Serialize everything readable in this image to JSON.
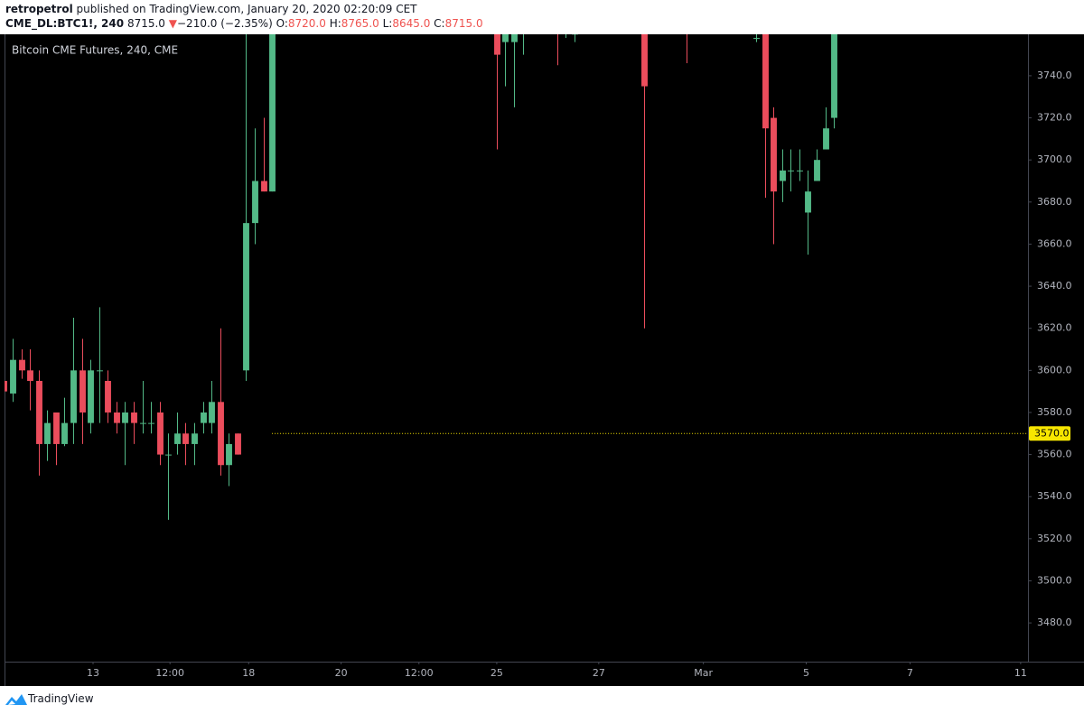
{
  "header": {
    "publisher": "retropetrol",
    "published_text": "published on TradingView.com, January 20, 2020 02:20:09 CET",
    "symbol": "CME_DL:BTC1!, 240",
    "last": "8715.0",
    "arrow": "▼",
    "change": "−210.0 (−2.35%)",
    "open_label": "O:",
    "open": "8720.0",
    "high_label": "H:",
    "high": "8765.0",
    "low_label": "L:",
    "low": "8645.0",
    "close_label": "C:",
    "close": "8715.0"
  },
  "footer": {
    "brand": "TradingView"
  },
  "chart_data": {
    "type": "candlestick",
    "title": "Bitcoin CME Futures, 240, CME",
    "x": [
      -1,
      0,
      1,
      2,
      3,
      4,
      5,
      6,
      7,
      8,
      9,
      10,
      11,
      12,
      13,
      14,
      15,
      16,
      17,
      18,
      19,
      20,
      21,
      22,
      23,
      24,
      25,
      26,
      27,
      28,
      29,
      30,
      56,
      57,
      58,
      59,
      63,
      64,
      65,
      73,
      78,
      86,
      87,
      88,
      89,
      90,
      91,
      92,
      93,
      94,
      95
    ],
    "open": [
      3595,
      3589,
      3605,
      3600,
      3595,
      3565,
      3580,
      3565,
      3575,
      3600,
      3575,
      3600,
      3595,
      3580,
      3575,
      3580,
      3575,
      3575,
      3580,
      3560,
      3565,
      3570,
      3565,
      3575,
      3575,
      3585,
      3555,
      3570,
      3600,
      3670,
      3690,
      3685,
      3770,
      3756,
      3756,
      3765,
      3770,
      3762,
      3760,
      3770,
      3765,
      3758,
      3770,
      3720,
      3690,
      3695,
      3695,
      3675,
      3690,
      3705,
      3720
    ],
    "high": [
      3600,
      3615,
      3610,
      3610,
      3600,
      3581,
      3580,
      3587,
      3625,
      3615,
      3605,
      3630,
      3600,
      3585,
      3585,
      3585,
      3595,
      3585,
      3585,
      3570,
      3580,
      3575,
      3575,
      3585,
      3595,
      3620,
      3570,
      3570,
      3780,
      3715,
      3720,
      3780,
      3780,
      3775,
      3780,
      3775,
      3775,
      3770,
      3770,
      3780,
      3775,
      3765,
      3780,
      3725,
      3705,
      3705,
      3705,
      3695,
      3705,
      3725,
      3780
    ],
    "low": [
      3585,
      3585,
      3596,
      3581,
      3550,
      3557,
      3555,
      3564,
      3565,
      3565,
      3570,
      3575,
      3575,
      3570,
      3555,
      3565,
      3570,
      3570,
      3555,
      3529,
      3560,
      3555,
      3555,
      3570,
      3570,
      3550,
      3545,
      3560,
      3595,
      3660,
      3685,
      3685,
      3705,
      3735,
      3725,
      3750,
      3745,
      3758,
      3756,
      3620,
      3746,
      3756,
      3682,
      3660,
      3680,
      3685,
      3690,
      3655,
      3690,
      3705,
      3715
    ],
    "close": [
      3590,
      3605,
      3600,
      3595,
      3565,
      3575,
      3565,
      3575,
      3600,
      3580,
      3600,
      3600,
      3580,
      3575,
      3580,
      3575,
      3575,
      3575,
      3560,
      3560,
      3570,
      3565,
      3570,
      3580,
      3585,
      3555,
      3565,
      3560,
      3670,
      3690,
      3685,
      3770,
      3750,
      3765,
      3765,
      3768,
      3765,
      3762,
      3760,
      3735,
      3762,
      3758,
      3715,
      3685,
      3695,
      3695,
      3695,
      3685,
      3700,
      3715,
      3770
    ],
    "up_color": "#53b987",
    "down_color": "#eb4d5c",
    "xlim": [
      -0.94,
      117.45
    ],
    "xticks": [
      {
        "value": 9.3,
        "label": "13"
      },
      {
        "value": 18.2,
        "label": "12:00"
      },
      {
        "value": 27.3,
        "label": "18"
      },
      {
        "value": 38,
        "label": "20"
      },
      {
        "value": 47,
        "label": "12:00"
      },
      {
        "value": 56,
        "label": "25"
      },
      {
        "value": 67.8,
        "label": "27"
      },
      {
        "value": 79.9,
        "label": "Mar"
      },
      {
        "value": 91.8,
        "label": "5"
      },
      {
        "value": 103.8,
        "label": "7"
      },
      {
        "value": 116.6,
        "label": "11"
      }
    ],
    "ylim": [
      3461.6,
      3759.7
    ],
    "yticks": [
      {
        "value": 3480,
        "label": "3480.0"
      },
      {
        "value": 3500,
        "label": "3500.0"
      },
      {
        "value": 3520,
        "label": "3520.0"
      },
      {
        "value": 3540,
        "label": "3540.0"
      },
      {
        "value": 3560,
        "label": "3560.0"
      },
      {
        "value": 3580,
        "label": "3580.0"
      },
      {
        "value": 3600,
        "label": "3600.0"
      },
      {
        "value": 3620,
        "label": "3620.0"
      },
      {
        "value": 3640,
        "label": "3640.0"
      },
      {
        "value": 3660,
        "label": "3660.0"
      },
      {
        "value": 3680,
        "label": "3680.0"
      },
      {
        "value": 3700,
        "label": "3700.0"
      },
      {
        "value": 3720,
        "label": "3720.0"
      },
      {
        "value": 3740,
        "label": "3740.0"
      }
    ],
    "grid": false,
    "price_line": {
      "value": 3570,
      "label": "3570.0",
      "color": "#f7e600"
    }
  }
}
